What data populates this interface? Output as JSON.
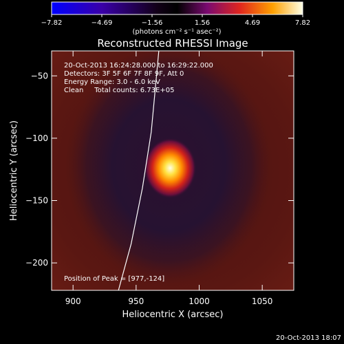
{
  "chart_data": {
    "type": "heatmap",
    "title": "Reconstructed RHESSI Image",
    "xlabel": "Heliocentric X (arcsec)",
    "ylabel": "Heliocentric Y (arcsec)",
    "xlim": [
      883,
      1075
    ],
    "ylim": [
      -222,
      -30
    ],
    "x_ticks": [
      900,
      950,
      1000,
      1050
    ],
    "y_ticks": [
      -50,
      -100,
      -150,
      -200
    ],
    "colorbar": {
      "label": "(photons cm⁻² s⁻¹ asec⁻²)",
      "ticks": [
        "−7.82",
        "−4.69",
        "−1.56",
        "1.56",
        "4.69",
        "7.82"
      ],
      "range": [
        -7.82,
        7.82
      ],
      "colors": [
        "#0000ff",
        "#1a0033",
        "#000000",
        "#8a0c78",
        "#e8261e",
        "#ff9b00",
        "#ffffe6"
      ]
    },
    "info_lines": [
      "20-Oct-2013 16:24:28.000 to 16:29:22.000",
      "Detectors: 3F 5F 6F 7F 8F 9F, Att 0",
      "Energy Range: 3.0 - 6.0 keV",
      "Clean     Total counts: 6.73E+05"
    ],
    "peak_label": "Position of Peak = [977,-124]",
    "peak": {
      "x": 977,
      "y": -124,
      "value": 7.82
    },
    "limb_curve": [
      [
        936,
        -222
      ],
      [
        946,
        -185
      ],
      [
        955,
        -140
      ],
      [
        962,
        -95
      ],
      [
        968,
        -30
      ]
    ],
    "footer": "20-Oct-2013 18:07",
    "colors": {
      "background": "#000000",
      "frame_bg": "#5a1410",
      "ring": "#231034",
      "peak_core": "#ffffe0"
    }
  }
}
